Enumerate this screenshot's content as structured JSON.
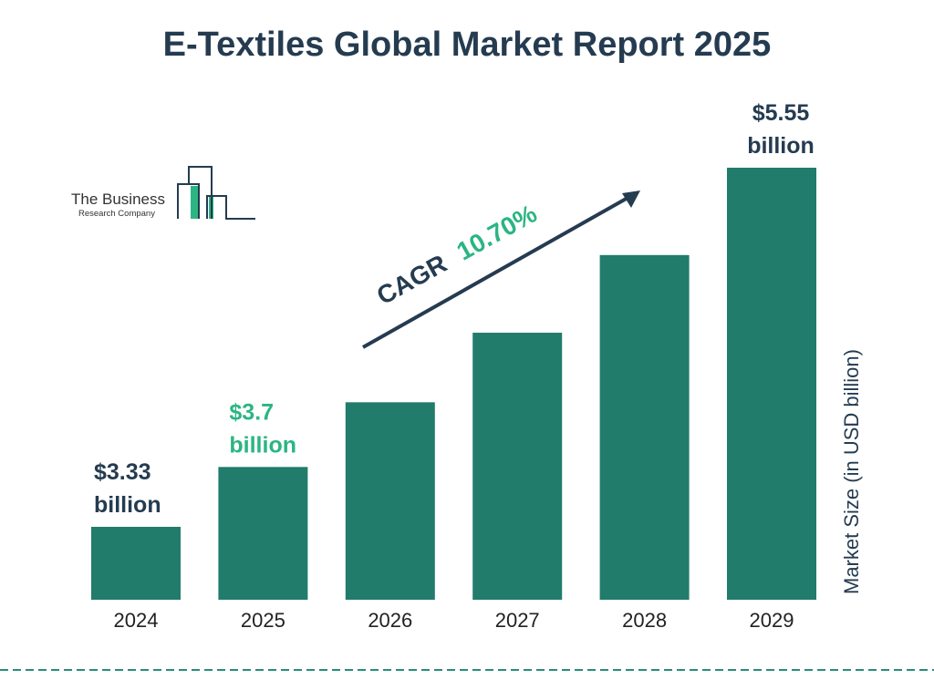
{
  "title": "E-Textiles Global Market Report 2025",
  "logo": {
    "line1": "The Business",
    "line2": "Research Company"
  },
  "colors": {
    "bar": "#217c6c",
    "dark": "#253b50",
    "accent": "#2bb583",
    "divider": "#2a8c7c"
  },
  "chart_data": {
    "type": "bar",
    "categories": [
      "2024",
      "2025",
      "2026",
      "2027",
      "2028",
      "2029"
    ],
    "values": [
      3.33,
      3.7,
      4.1,
      4.53,
      5.01,
      5.55
    ],
    "data_labels": [
      {
        "index": 0,
        "line1": "$3.33",
        "line2": "billion",
        "color": "#253b50"
      },
      {
        "index": 1,
        "line1": "$3.7",
        "line2": "billion",
        "color": "#2bb583"
      },
      {
        "index": 5,
        "line1": "$5.55",
        "line2": "billion",
        "color": "#253b50"
      }
    ],
    "annotation": {
      "prefix": "CAGR",
      "value": "10.70%"
    },
    "ylabel": "Market Size (in USD billion)",
    "xlabel": "",
    "grid": false,
    "legend": "none"
  }
}
